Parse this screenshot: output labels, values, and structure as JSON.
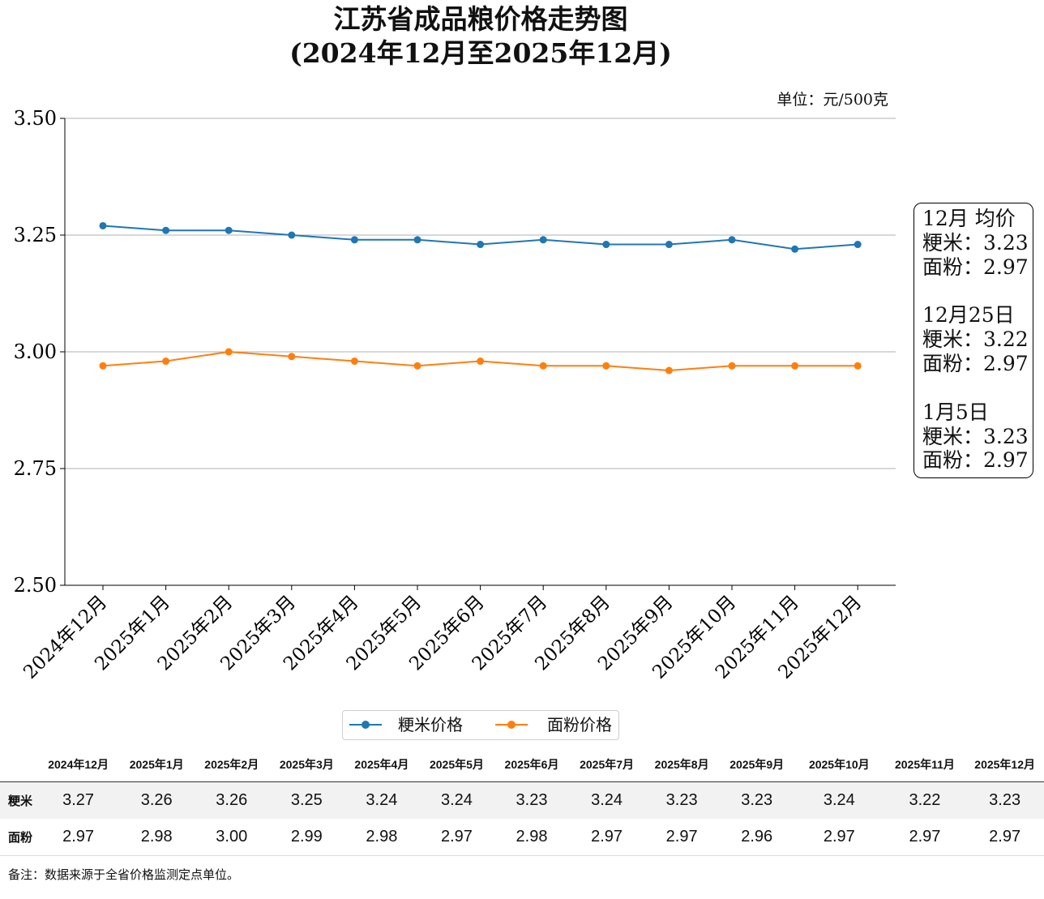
{
  "title_line1": "江苏省成品粮价格走势图",
  "title_line2": "(2024年12月至2025年12月)",
  "unit": "单位：元/500克",
  "chart_data": {
    "type": "line",
    "categories": [
      "2024年12月",
      "2025年1月",
      "2025年2月",
      "2025年3月",
      "2025年4月",
      "2025年5月",
      "2025年6月",
      "2025年7月",
      "2025年8月",
      "2025年9月",
      "2025年10月",
      "2025年11月",
      "2025年12月"
    ],
    "series": [
      {
        "name": "粳米价格",
        "color": "#1f77b4",
        "values": [
          3.27,
          3.26,
          3.26,
          3.25,
          3.24,
          3.24,
          3.23,
          3.24,
          3.23,
          3.23,
          3.24,
          3.22,
          3.23
        ]
      },
      {
        "name": "面粉价格",
        "color": "#ff7f0e",
        "values": [
          2.97,
          2.98,
          3.0,
          2.99,
          2.98,
          2.97,
          2.98,
          2.97,
          2.97,
          2.96,
          2.97,
          2.97,
          2.97
        ]
      }
    ],
    "ylim": [
      2.5,
      3.5
    ],
    "yticks": [
      "2.50",
      "2.75",
      "3.00",
      "3.25",
      "3.50"
    ],
    "grid": "horizontal",
    "legend": "bottom-center"
  },
  "side_box": {
    "avg_title": "12月 均价",
    "avg_rice": "粳米：3.23",
    "avg_flour": "面粉：2.97",
    "d1_title": "12月25日",
    "d1_rice": "粳米：3.22",
    "d1_flour": "面粉：2.97",
    "d2_title": "1月5日",
    "d2_rice": "粳米：3.23",
    "d2_flour": "面粉：2.97"
  },
  "table": {
    "headers": [
      "",
      "2024年12月",
      "2025年1月",
      "2025年2月",
      "2025年3月",
      "2025年4月",
      "2025年5月",
      "2025年6月",
      "2025年7月",
      "2025年8月",
      "2025年9月",
      "2025年10月",
      "2025年11月",
      "2025年12月"
    ],
    "rows": [
      [
        "粳米",
        "3.27",
        "3.26",
        "3.26",
        "3.25",
        "3.24",
        "3.24",
        "3.23",
        "3.24",
        "3.23",
        "3.23",
        "3.24",
        "3.22",
        "3.23"
      ],
      [
        "面粉",
        "2.97",
        "2.98",
        "3.00",
        "2.99",
        "2.98",
        "2.97",
        "2.98",
        "2.97",
        "2.97",
        "2.96",
        "2.97",
        "2.97",
        "2.97"
      ]
    ]
  },
  "note": "备注：数据来源于全省价格监测定点单位。"
}
